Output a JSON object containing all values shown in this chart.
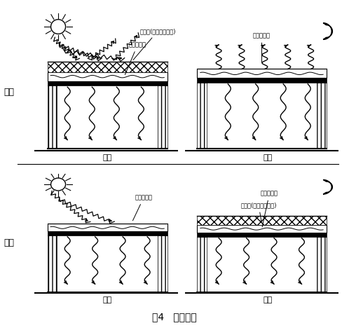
{
  "title": "图4   蓄热屋顶",
  "season_summer": "夏季",
  "season_winter": "冬季",
  "label_day": "白天",
  "label_night": "夜间",
  "label_insulation": "保温板(表面做反射膜)",
  "label_roof_thermal": "屋面蓄热体",
  "bg_color": "#ffffff"
}
